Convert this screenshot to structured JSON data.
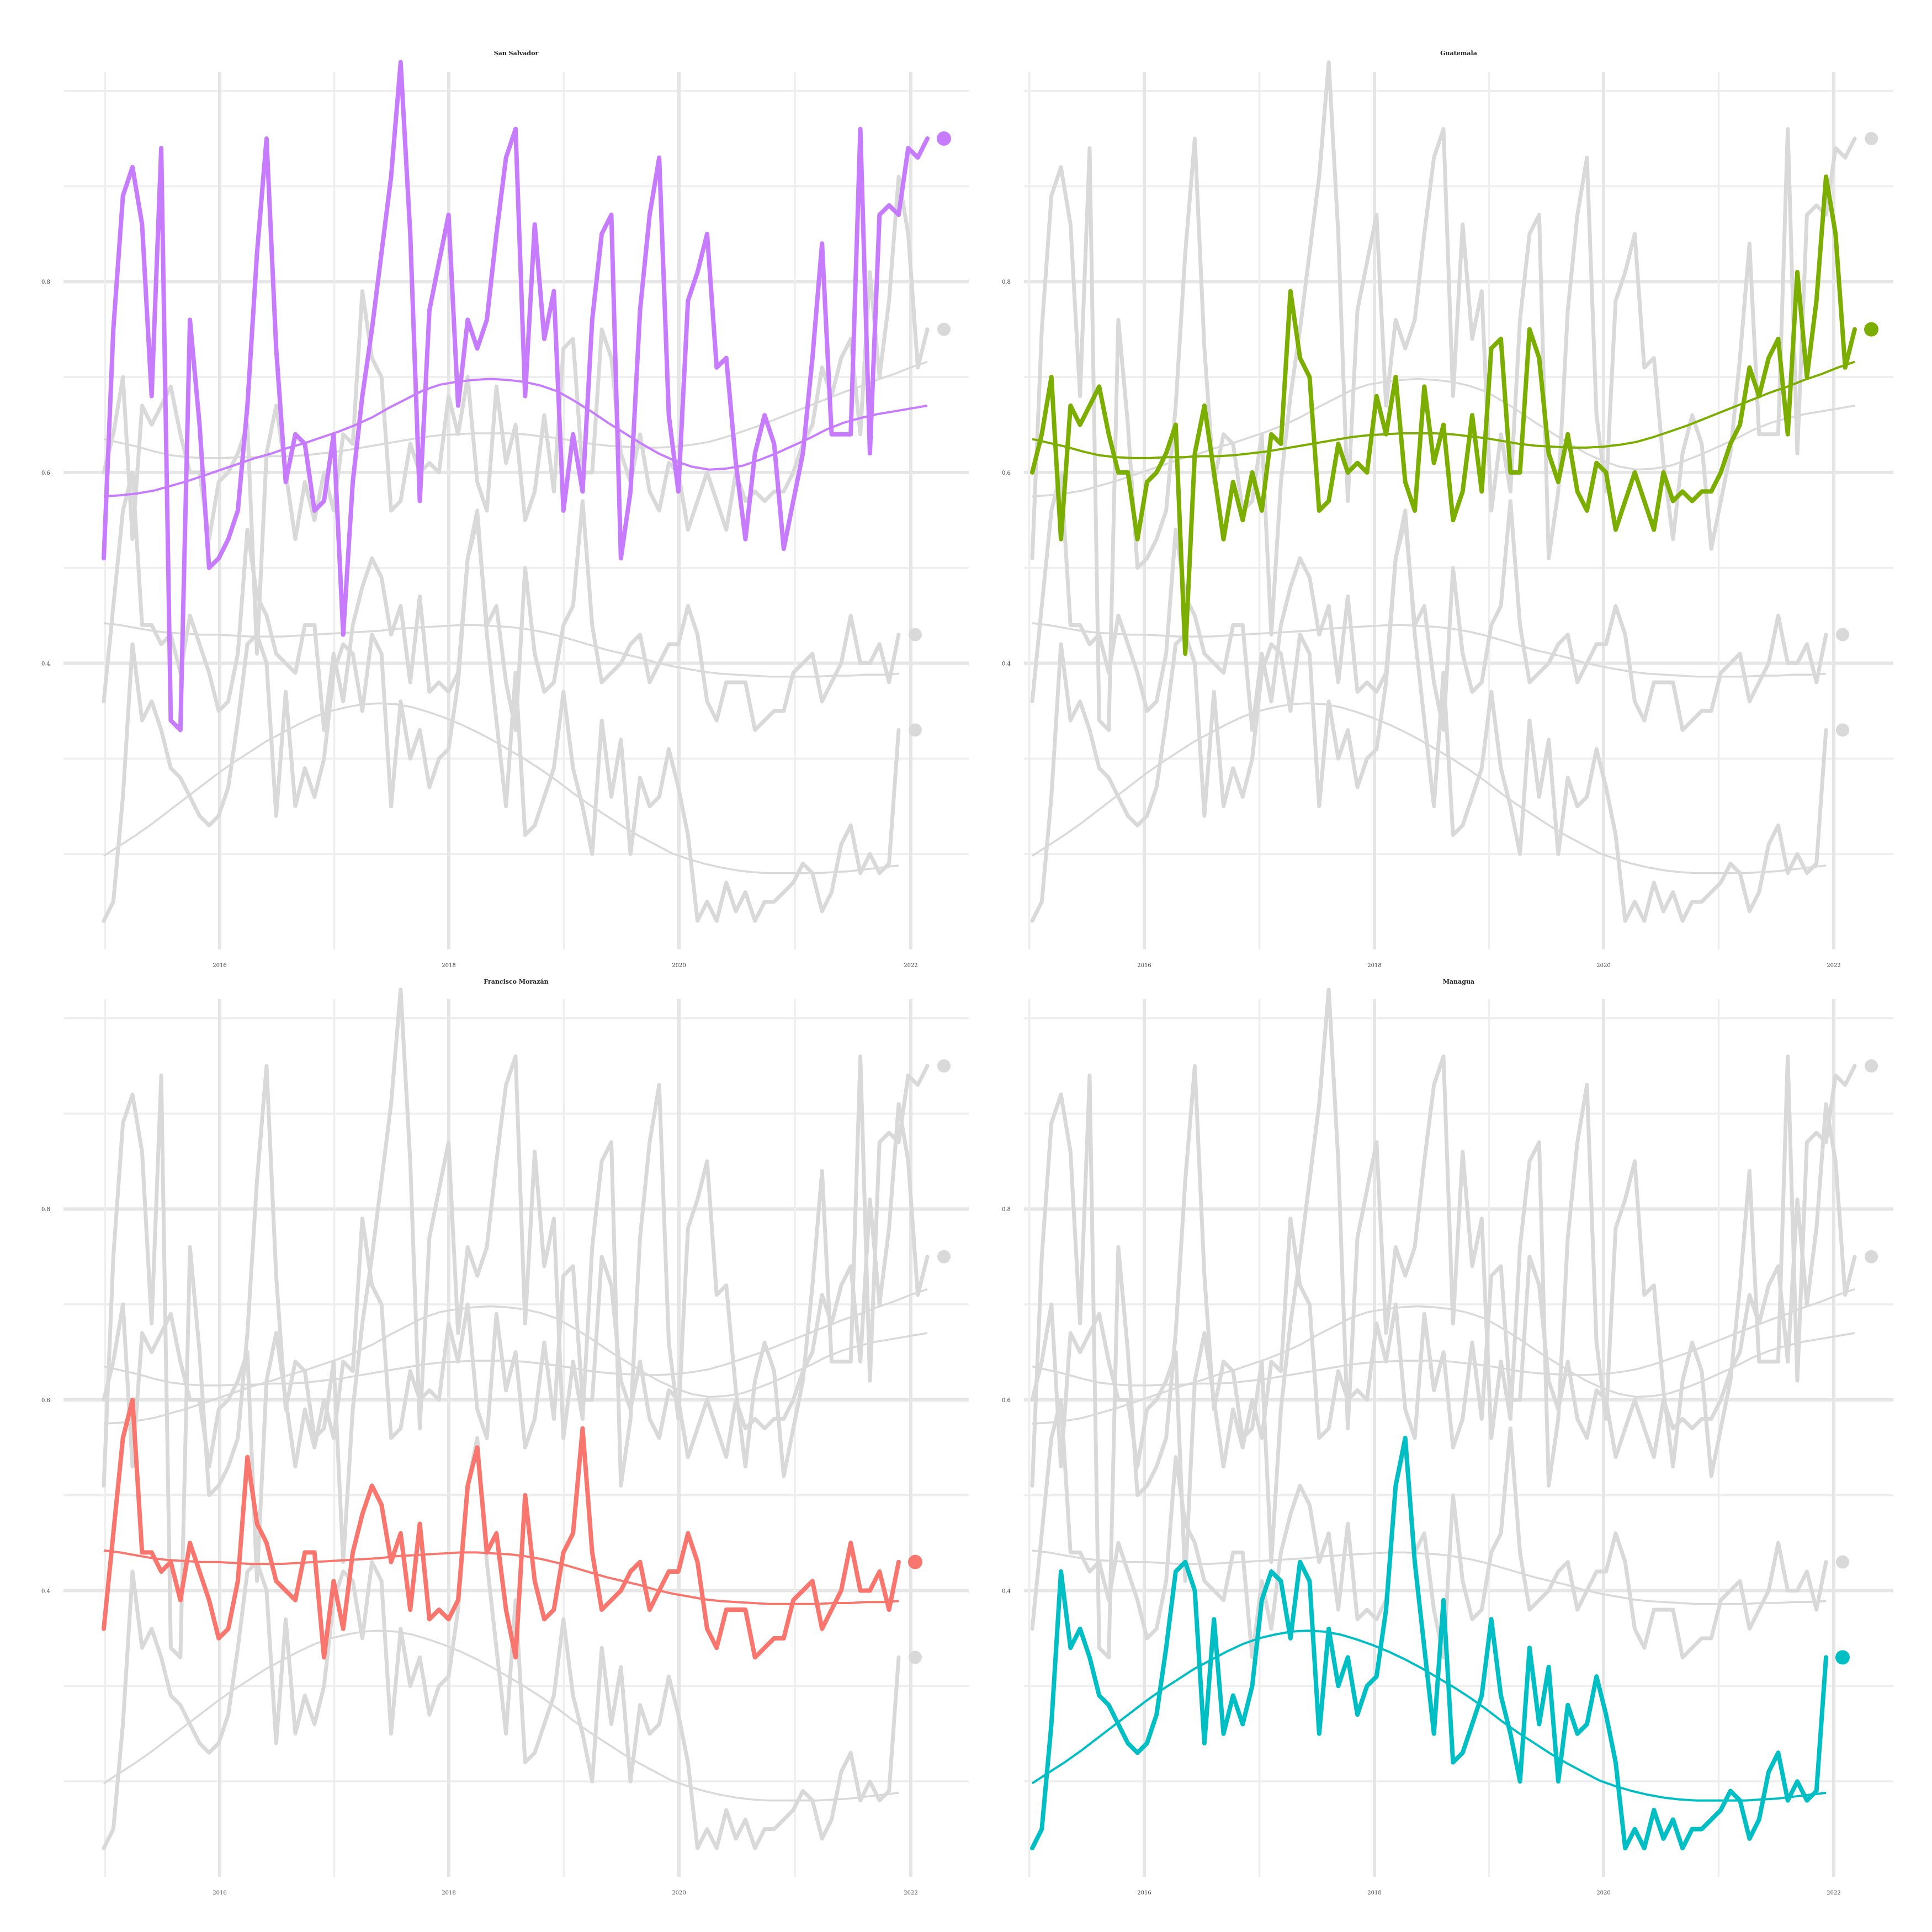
{
  "chart_data": {
    "type": "line",
    "layout": "small-multiples",
    "ylim": [
      0.1,
      1.02
    ],
    "y_ticks": [
      0.4,
      0.6,
      0.8
    ],
    "y_tick_labels": [
      "0.4",
      "0.6",
      "0.8"
    ],
    "x_start": "2015-01",
    "x_step_months": 1,
    "xlim": [
      2014.9,
      2022.35
    ],
    "x_ticks": [
      2016,
      2018,
      2020,
      2022
    ],
    "x_tick_labels": [
      "2016",
      "2018",
      "2020",
      "2022"
    ],
    "grid": true,
    "legend": "none",
    "background_color": "#d9d9d9",
    "series": [
      {
        "name": "San Salvador",
        "color": "#c77cff",
        "values": [
          0.51,
          0.75,
          0.89,
          0.92,
          0.86,
          0.68,
          0.94,
          0.34,
          0.33,
          0.76,
          0.65,
          0.5,
          0.51,
          0.53,
          0.56,
          0.67,
          0.83,
          0.95,
          0.73,
          0.59,
          0.64,
          0.63,
          0.56,
          0.57,
          0.64,
          0.43,
          0.59,
          0.68,
          0.75,
          0.83,
          0.91,
          1.03,
          0.85,
          0.57,
          0.77,
          0.82,
          0.87,
          0.67,
          0.76,
          0.73,
          0.76,
          0.85,
          0.93,
          0.96,
          0.68,
          0.86,
          0.74,
          0.79,
          0.56,
          0.64,
          0.58,
          0.76,
          0.85,
          0.87,
          0.51,
          0.58,
          0.77,
          0.87,
          0.93,
          0.66,
          0.58,
          0.78,
          0.81,
          0.85,
          0.71,
          0.72,
          0.61,
          0.53,
          0.62,
          0.66,
          0.63,
          0.52,
          0.57,
          0.62,
          0.72,
          0.84,
          0.64,
          0.64,
          0.64,
          0.96,
          0.62,
          0.87,
          0.88,
          0.87,
          0.94,
          0.93,
          0.95
        ],
        "trend": [
          0.575,
          0.576,
          0.578,
          0.581,
          0.586,
          0.591,
          0.597,
          0.603,
          0.609,
          0.615,
          0.62,
          0.626,
          0.631,
          0.637,
          0.643,
          0.65,
          0.658,
          0.668,
          0.677,
          0.686,
          0.692,
          0.695,
          0.697,
          0.698,
          0.697,
          0.695,
          0.691,
          0.685,
          0.675,
          0.664,
          0.652,
          0.641,
          0.63,
          0.62,
          0.612,
          0.606,
          0.603,
          0.604,
          0.607,
          0.613,
          0.62,
          0.628,
          0.636,
          0.645,
          0.652,
          0.657,
          0.661,
          0.664,
          0.667,
          0.67
        ]
      },
      {
        "name": "Guatemala",
        "color": "#7cae00",
        "values": [
          0.6,
          0.64,
          0.7,
          0.53,
          0.67,
          0.65,
          0.67,
          0.69,
          0.64,
          0.6,
          0.6,
          0.53,
          0.59,
          0.6,
          0.62,
          0.65,
          0.41,
          0.62,
          0.67,
          0.6,
          0.53,
          0.59,
          0.55,
          0.6,
          0.56,
          0.64,
          0.63,
          0.79,
          0.72,
          0.7,
          0.56,
          0.57,
          0.63,
          0.6,
          0.61,
          0.6,
          0.68,
          0.64,
          0.7,
          0.59,
          0.56,
          0.69,
          0.61,
          0.65,
          0.55,
          0.58,
          0.66,
          0.58,
          0.73,
          0.74,
          0.6,
          0.6,
          0.75,
          0.72,
          0.62,
          0.59,
          0.64,
          0.58,
          0.56,
          0.61,
          0.6,
          0.54,
          0.57,
          0.6,
          0.57,
          0.54,
          0.6,
          0.57,
          0.58,
          0.57,
          0.58,
          0.58,
          0.6,
          0.63,
          0.65,
          0.71,
          0.68,
          0.72,
          0.74,
          0.64,
          0.81,
          0.7,
          0.78,
          0.91,
          0.85,
          0.71,
          0.75
        ],
        "trend": [
          0.635,
          0.631,
          0.627,
          0.622,
          0.618,
          0.616,
          0.615,
          0.615,
          0.616,
          0.616,
          0.617,
          0.617,
          0.618,
          0.62,
          0.622,
          0.625,
          0.628,
          0.631,
          0.634,
          0.637,
          0.639,
          0.64,
          0.641,
          0.641,
          0.641,
          0.64,
          0.638,
          0.636,
          0.633,
          0.63,
          0.628,
          0.627,
          0.626,
          0.626,
          0.627,
          0.629,
          0.632,
          0.637,
          0.643,
          0.649,
          0.656,
          0.663,
          0.67,
          0.677,
          0.684,
          0.69,
          0.697,
          0.703,
          0.71,
          0.716
        ]
      },
      {
        "name": "Francisco Morazán",
        "color": "#f8766d",
        "values": [
          0.36,
          0.46,
          0.56,
          0.6,
          0.44,
          0.44,
          0.42,
          0.43,
          0.39,
          0.45,
          0.42,
          0.39,
          0.35,
          0.36,
          0.41,
          0.54,
          0.47,
          0.45,
          0.41,
          0.4,
          0.39,
          0.44,
          0.44,
          0.33,
          0.41,
          0.36,
          0.44,
          0.48,
          0.51,
          0.49,
          0.43,
          0.46,
          0.38,
          0.47,
          0.37,
          0.38,
          0.37,
          0.39,
          0.51,
          0.55,
          0.44,
          0.46,
          0.38,
          0.33,
          0.5,
          0.41,
          0.37,
          0.38,
          0.44,
          0.46,
          0.57,
          0.44,
          0.38,
          0.39,
          0.4,
          0.42,
          0.43,
          0.38,
          0.4,
          0.42,
          0.42,
          0.46,
          0.43,
          0.36,
          0.34,
          0.38,
          0.38,
          0.38,
          0.33,
          0.34,
          0.35,
          0.35,
          0.39,
          0.4,
          0.41,
          0.36,
          0.38,
          0.4,
          0.45,
          0.4,
          0.4,
          0.42,
          0.38,
          0.43
        ],
        "trend": [
          0.442,
          0.44,
          0.437,
          0.434,
          0.432,
          0.431,
          0.43,
          0.43,
          0.429,
          0.428,
          0.428,
          0.428,
          0.429,
          0.43,
          0.431,
          0.432,
          0.433,
          0.434,
          0.436,
          0.437,
          0.438,
          0.439,
          0.44,
          0.44,
          0.439,
          0.438,
          0.436,
          0.433,
          0.429,
          0.424,
          0.419,
          0.414,
          0.41,
          0.406,
          0.401,
          0.397,
          0.394,
          0.391,
          0.389,
          0.388,
          0.387,
          0.386,
          0.386,
          0.386,
          0.386,
          0.387,
          0.387,
          0.388,
          0.388,
          0.389
        ]
      },
      {
        "name": "Managua",
        "color": "#00bfc4",
        "values": [
          0.13,
          0.15,
          0.26,
          0.42,
          0.34,
          0.36,
          0.33,
          0.29,
          0.28,
          0.26,
          0.24,
          0.23,
          0.24,
          0.27,
          0.34,
          0.42,
          0.43,
          0.4,
          0.24,
          0.37,
          0.25,
          0.29,
          0.26,
          0.3,
          0.39,
          0.42,
          0.41,
          0.35,
          0.43,
          0.41,
          0.25,
          0.36,
          0.3,
          0.33,
          0.27,
          0.3,
          0.31,
          0.38,
          0.51,
          0.56,
          0.43,
          0.34,
          0.25,
          0.39,
          0.22,
          0.23,
          0.26,
          0.29,
          0.37,
          0.29,
          0.25,
          0.2,
          0.34,
          0.26,
          0.32,
          0.2,
          0.28,
          0.25,
          0.26,
          0.31,
          0.27,
          0.22,
          0.13,
          0.15,
          0.13,
          0.17,
          0.14,
          0.16,
          0.13,
          0.15,
          0.15,
          0.16,
          0.17,
          0.19,
          0.18,
          0.14,
          0.16,
          0.21,
          0.23,
          0.18,
          0.2,
          0.18,
          0.19,
          0.33
        ],
        "trend": [
          0.198,
          0.209,
          0.22,
          0.232,
          0.245,
          0.258,
          0.271,
          0.284,
          0.296,
          0.307,
          0.318,
          0.327,
          0.336,
          0.344,
          0.35,
          0.354,
          0.357,
          0.358,
          0.357,
          0.354,
          0.349,
          0.343,
          0.336,
          0.328,
          0.319,
          0.309,
          0.299,
          0.288,
          0.276,
          0.263,
          0.251,
          0.24,
          0.229,
          0.219,
          0.21,
          0.201,
          0.195,
          0.19,
          0.186,
          0.183,
          0.181,
          0.18,
          0.18,
          0.18,
          0.18,
          0.181,
          0.182,
          0.184,
          0.186,
          0.188
        ]
      }
    ]
  }
}
